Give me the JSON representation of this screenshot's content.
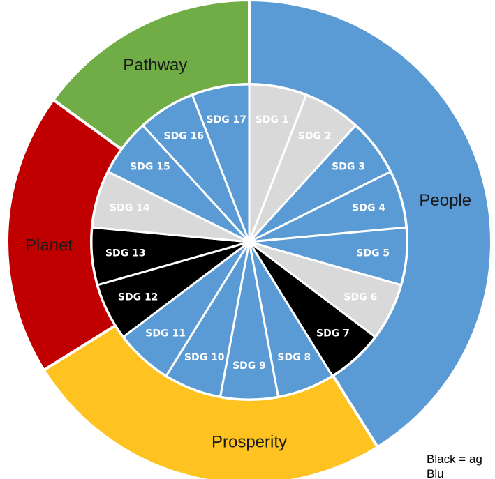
{
  "outer_ring": [
    {
      "key": "people",
      "label": "People",
      "color": "#5b9bd5",
      "start_deg": 0,
      "end_deg": 148
    },
    {
      "key": "prosperity",
      "label": "Prosperity",
      "color": "#ffc321",
      "start_deg": 148,
      "end_deg": 238
    },
    {
      "key": "planet",
      "label": "Planet",
      "color": "#c00000",
      "start_deg": 238,
      "end_deg": 306
    },
    {
      "key": "pathway",
      "label": "Pathway",
      "color": "#70ad47",
      "start_deg": 306,
      "end_deg": 360
    }
  ],
  "sdgs": [
    {
      "label": "SDG 1",
      "color": "#d9d9d9",
      "text_color": "#ffffff"
    },
    {
      "label": "SDG 2",
      "color": "#d9d9d9",
      "text_color": "#ffffff"
    },
    {
      "label": "SDG 3",
      "color": "#5b9bd5",
      "text_color": "#ffffff"
    },
    {
      "label": "SDG 4",
      "color": "#5b9bd5",
      "text_color": "#ffffff"
    },
    {
      "label": "SDG 5",
      "color": "#5b9bd5",
      "text_color": "#ffffff"
    },
    {
      "label": "SDG 6",
      "color": "#d9d9d9",
      "text_color": "#ffffff"
    },
    {
      "label": "SDG 7",
      "color": "#000000",
      "text_color": "#ffffff"
    },
    {
      "label": "SDG 8",
      "color": "#5b9bd5",
      "text_color": "#ffffff"
    },
    {
      "label": "SDG 9",
      "color": "#5b9bd5",
      "text_color": "#ffffff"
    },
    {
      "label": "SDG 10",
      "color": "#5b9bd5",
      "text_color": "#ffffff"
    },
    {
      "label": "SDG 11",
      "color": "#5b9bd5",
      "text_color": "#ffffff"
    },
    {
      "label": "SDG 12",
      "color": "#000000",
      "text_color": "#ffffff"
    },
    {
      "label": "SDG 13",
      "color": "#000000",
      "text_color": "#ffffff"
    },
    {
      "label": "SDG 14",
      "color": "#d9d9d9",
      "text_color": "#ffffff"
    },
    {
      "label": "SDG 15",
      "color": "#5b9bd5",
      "text_color": "#ffffff"
    },
    {
      "label": "SDG 16",
      "color": "#5b9bd5",
      "text_color": "#ffffff"
    },
    {
      "label": "SDG 17",
      "color": "#5b9bd5",
      "text_color": "#ffffff"
    }
  ],
  "legend": {
    "line1": "Black = ag",
    "line2": "Blu"
  }
}
